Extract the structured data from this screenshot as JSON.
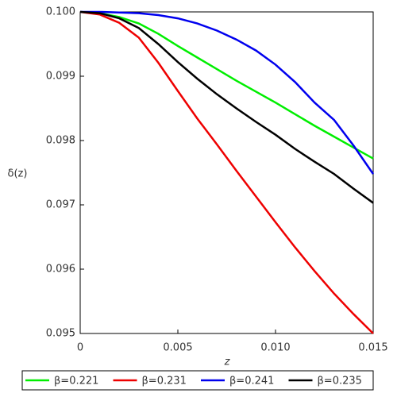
{
  "chart_data": {
    "type": "line",
    "xlabel": "z",
    "ylabel": "δ(z)",
    "x": [
      0,
      0.001,
      0.002,
      0.003,
      0.004,
      0.005,
      0.006,
      0.007,
      0.008,
      0.009,
      0.01,
      0.011,
      0.012,
      0.013,
      0.014,
      0.015
    ],
    "series": [
      {
        "name": "β=0.221",
        "color": "#00ee00",
        "values": [
          0.1,
          0.09998,
          0.09992,
          0.09982,
          0.09966,
          0.09947,
          0.09929,
          0.09911,
          0.09893,
          0.09876,
          0.09859,
          0.09841,
          0.09823,
          0.09806,
          0.09789,
          0.09772
        ]
      },
      {
        "name": "β=0.231",
        "color": "#ee0000",
        "values": [
          0.1,
          0.09996,
          0.09983,
          0.0996,
          0.09921,
          0.09877,
          0.09834,
          0.09794,
          0.09753,
          0.09713,
          0.09673,
          0.09634,
          0.09597,
          0.09562,
          0.0953,
          0.095
        ]
      },
      {
        "name": "β=0.241",
        "color": "#0000ee",
        "values": [
          0.1,
          0.1,
          0.09999,
          0.09998,
          0.09995,
          0.0999,
          0.09982,
          0.09971,
          0.09957,
          0.0994,
          0.09918,
          0.09891,
          0.09859,
          0.09832,
          0.09792,
          0.09748
        ]
      },
      {
        "name": "β=0.235",
        "color": "#000000",
        "values": [
          0.1,
          0.09998,
          0.0999,
          0.09975,
          0.0995,
          0.09922,
          0.09896,
          0.09872,
          0.0985,
          0.09829,
          0.09809,
          0.09787,
          0.09767,
          0.09748,
          0.09725,
          0.09703
        ]
      }
    ],
    "xlim": [
      0,
      0.015
    ],
    "xticks": [
      0,
      0.005,
      {
        "value": 0.01,
        "label": "0.010"
      },
      0.015
    ],
    "ylim": [
      0.095,
      0.1
    ],
    "yticks": [
      0.095,
      0.096,
      0.097,
      0.098,
      0.099,
      {
        "value": 0.1,
        "label": "0.100"
      }
    ],
    "legend": "bottom"
  }
}
